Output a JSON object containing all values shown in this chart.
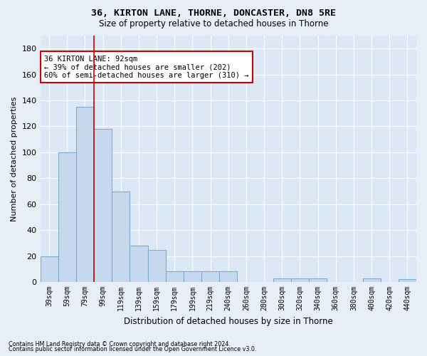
{
  "title1": "36, KIRTON LANE, THORNE, DONCASTER, DN8 5RE",
  "title2": "Size of property relative to detached houses in Thorne",
  "xlabel": "Distribution of detached houses by size in Thorne",
  "ylabel": "Number of detached properties",
  "bar_color": "#c5d8ee",
  "bar_edge_color": "#7aafd4",
  "categories": [
    "39sqm",
    "59sqm",
    "79sqm",
    "99sqm",
    "119sqm",
    "139sqm",
    "159sqm",
    "179sqm",
    "199sqm",
    "219sqm",
    "240sqm",
    "260sqm",
    "280sqm",
    "300sqm",
    "320sqm",
    "340sqm",
    "360sqm",
    "380sqm",
    "400sqm",
    "420sqm",
    "440sqm"
  ],
  "values": [
    20,
    100,
    135,
    118,
    70,
    28,
    25,
    8,
    8,
    8,
    8,
    0,
    0,
    3,
    3,
    3,
    0,
    0,
    3,
    0,
    2
  ],
  "vline_x": 2.5,
  "annotation_title": "36 KIRTON LANE: 92sqm",
  "annotation_line1": "← 39% of detached houses are smaller (202)",
  "annotation_line2": "60% of semi-detached houses are larger (310) →",
  "ylim": [
    0,
    190
  ],
  "yticks": [
    0,
    20,
    40,
    60,
    80,
    100,
    120,
    140,
    160,
    180
  ],
  "footer1": "Contains HM Land Registry data © Crown copyright and database right 2024.",
  "footer2": "Contains public sector information licensed under the Open Government Licence v3.0.",
  "bg_color": "#e8eef5",
  "plot_bg": "#dce8f5"
}
